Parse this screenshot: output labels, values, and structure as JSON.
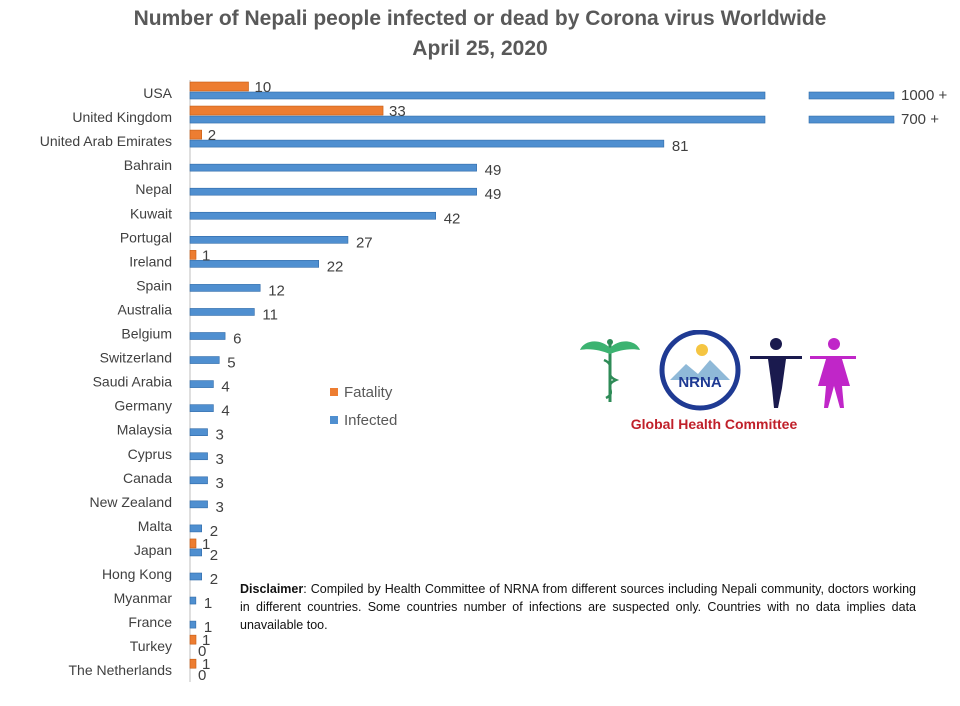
{
  "chart_data": {
    "type": "bar",
    "orientation": "horizontal",
    "title": "Number of Nepali people infected or dead by Corona virus Worldwide",
    "subtitle": "April 25, 2020",
    "categories": [
      "USA",
      "United Kingdom",
      "United Arab Emirates",
      "Bahrain",
      "Nepal",
      "Kuwait",
      "Portugal",
      "Ireland",
      "Spain",
      "Australia",
      "Belgium",
      "Switzerland",
      "Saudi Arabia",
      "Germany",
      "Malaysia",
      "Cyprus",
      "Canada",
      "New Zealand",
      "Malta",
      "Japan",
      "Hong Kong",
      "Myanmar",
      "France",
      "Turkey",
      "The Netherlands"
    ],
    "series": [
      {
        "name": "Fatality",
        "color": "#ed7d31",
        "values": [
          10,
          33,
          2,
          null,
          null,
          null,
          null,
          1,
          null,
          null,
          null,
          null,
          null,
          null,
          null,
          null,
          null,
          null,
          null,
          1,
          null,
          null,
          null,
          1,
          1
        ]
      },
      {
        "name": "Infected",
        "color": "#4f8fd0",
        "values": [
          1000,
          700,
          81,
          49,
          49,
          42,
          27,
          22,
          12,
          11,
          6,
          5,
          4,
          4,
          3,
          3,
          3,
          3,
          2,
          2,
          2,
          1,
          1,
          0,
          0
        ]
      }
    ],
    "infected_labels": [
      "1000",
      "700",
      "81",
      "49",
      "49",
      "42",
      "27",
      "22",
      "12",
      "11",
      "6",
      "5",
      "4",
      "4",
      "3",
      "3",
      "3",
      "3",
      "2",
      "2",
      "2",
      "1",
      "1",
      "0",
      "0"
    ],
    "overflow_suffix": "+",
    "broken_axis": [
      "USA",
      "United Kingdom"
    ]
  },
  "legend": {
    "fatality": "Fatality",
    "infected": "Infected"
  },
  "logo": {
    "badge_text": "NRNA",
    "caption": "Global Health Committee"
  },
  "disclaimer": {
    "label": "Disclaimer",
    "text": ": Compiled by Health Committee of NRNA from different sources including Nepali community, doctors working in different countries. Some countries number of infections are suspected only. Countries with no data implies data unavailable too."
  }
}
